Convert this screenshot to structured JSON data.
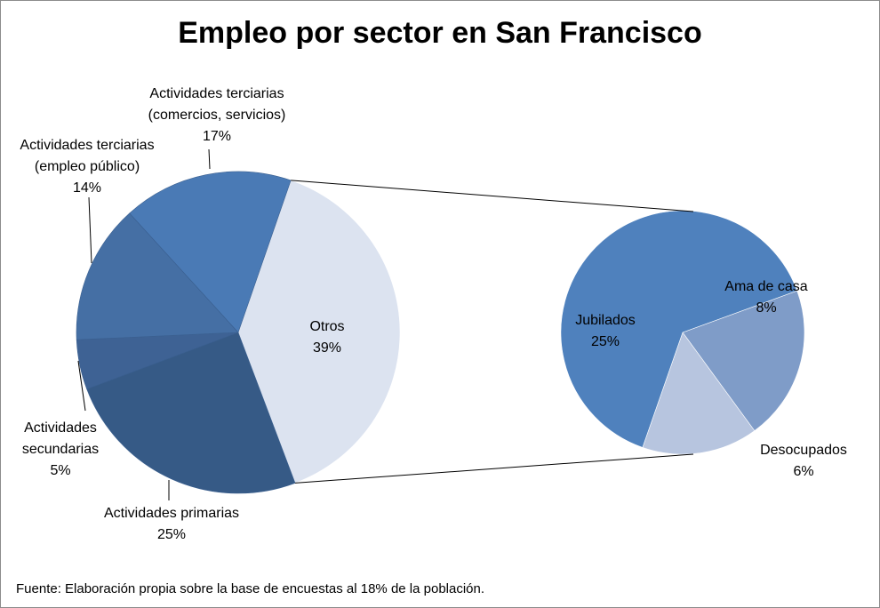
{
  "title": "Empleo por sector en San Francisco",
  "footnote": "Fuente: Elaboración propia sobre la base de encuestas al 18%  de la población.",
  "chart_data": {
    "type": "pie",
    "subtype": "pie-of-pie",
    "main": {
      "slices": [
        {
          "id": "otros",
          "label": "Otros",
          "pct_label": "39%",
          "value": 39,
          "color": "#dce3f0"
        },
        {
          "id": "primarias",
          "label": "Actividades primarias",
          "pct_label": "25%",
          "value": 25,
          "color": "#365a86"
        },
        {
          "id": "secundarias",
          "label": "Actividades secundarias",
          "pct_label": "5%",
          "value": 5,
          "color": "#3e6294"
        },
        {
          "id": "publico",
          "label": "Actividades terciarias (empleo público)",
          "pct_label": "14%",
          "value": 14,
          "color": "#456fa4"
        },
        {
          "id": "comercios",
          "label": "Actividades terciarias (comercios, servicios)",
          "pct_label": "17%",
          "value": 17,
          "color": "#4a7ab5"
        }
      ]
    },
    "secondary": {
      "slices": [
        {
          "id": "jubilados",
          "label": "Jubilados",
          "pct_label": "25%",
          "value": 25,
          "color": "#4f81bd"
        },
        {
          "id": "ama",
          "label": "Ama de casa",
          "pct_label": "8%",
          "value": 8,
          "color": "#7f9cc8"
        },
        {
          "id": "desocupados",
          "label": "Desocupados",
          "pct_label": "6%",
          "value": 6,
          "color": "#b7c5df"
        }
      ]
    }
  }
}
